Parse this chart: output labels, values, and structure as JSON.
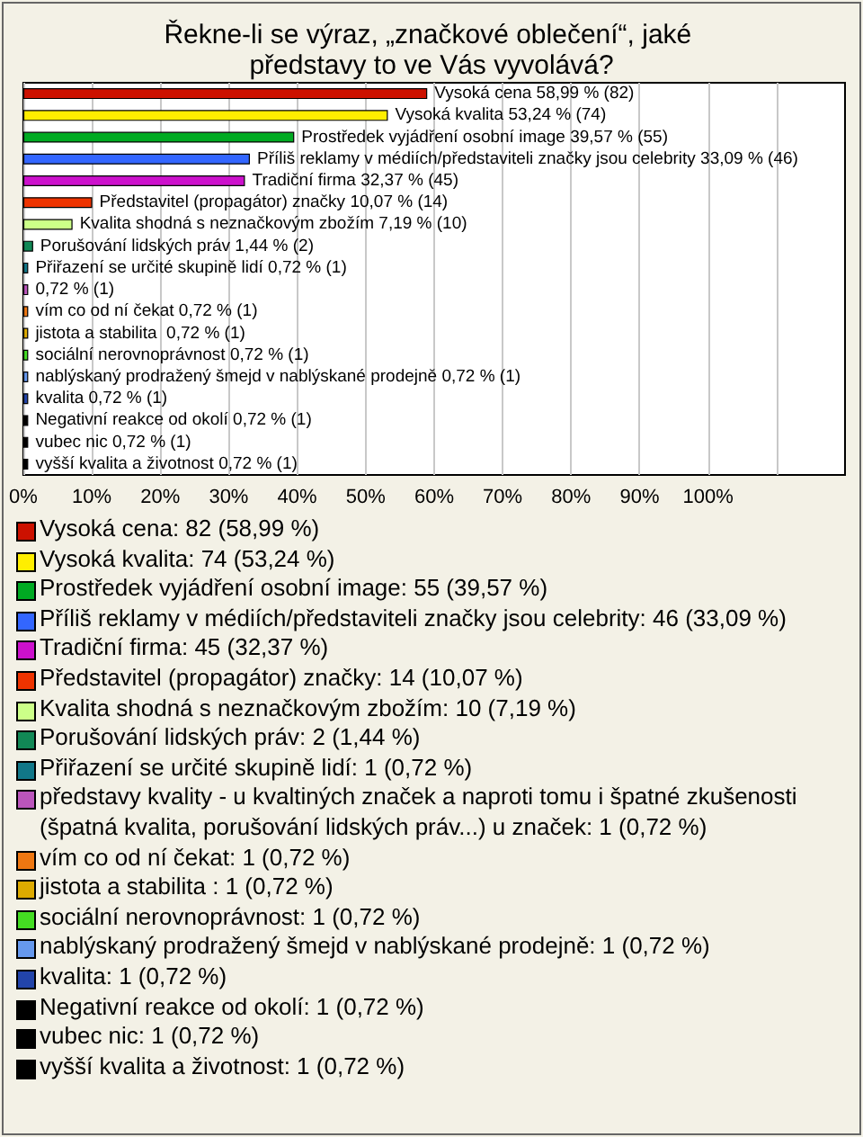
{
  "chart_data": {
    "type": "bar",
    "orientation": "horizontal",
    "title": "Řekne-li se výraz, „značkové oblečení“, jaké představy to ve Vás vyvolává?",
    "categories": [
      "Vysoká cena",
      "Vysoká kvalita",
      "Prostředek vyjádření osobní image",
      "Příliš reklamy v médiích/představiteli značky jsou celebrity",
      "Tradiční firma",
      "Představitel (propagátor) značky",
      "Kvalita shodná s neznačkovým zbožím",
      "Porušování lidských práv",
      "Přiřazení se určité skupině lidí",
      null,
      "vím co od ní čekat",
      "jistota a stabilita ",
      "sociální nerovnoprávnost",
      "nablýskaný prodražený šmejd v nablýskané prodejně",
      "kvalita",
      "Negativní reakce od okolí",
      "vubec nic",
      "vyšší kvalita a životnost"
    ],
    "values": [
      58.99,
      53.24,
      39.57,
      33.09,
      32.37,
      10.07,
      7.19,
      1.44,
      0.72,
      0.72,
      0.72,
      0.72,
      0.72,
      0.72,
      0.72,
      0.72,
      0.72,
      0.72
    ],
    "value_labels": [
      "58,99 % (82)",
      "53,24 % (74)",
      "39,57 % (55)",
      "33,09 % (46)",
      "32,37 % (45)",
      "10,07 % (14)",
      "7,19 % (10)",
      "1,44 % (2)",
      "0,72 % (1)",
      "0,72 % (1)",
      "0,72 % (1)",
      "0,72 % (1)",
      "0,72 % (1)",
      "0,72 % (1)",
      "0,72 % (1)",
      "0,72 % (1)",
      "0,72 % (1)",
      "0,72 % (1)"
    ],
    "colors": [
      "#cc1100",
      "#ffee00",
      "#00aa22",
      "#3366ff",
      "#cc11cc",
      "#ee3300",
      "#ccff88",
      "#118855",
      "#117788",
      "#bb55bb",
      "#ee7711",
      "#ddaa00",
      "#44dd22",
      "#6699ee",
      "#2244aa",
      "#000000",
      "#000000",
      "#000000"
    ],
    "xlim": [
      0,
      120
    ],
    "xticks": [
      {
        "value": 0,
        "label": "0%"
      },
      {
        "value": 10,
        "label": "10%"
      },
      {
        "value": 20,
        "label": "20%"
      },
      {
        "value": 30,
        "label": "30%"
      },
      {
        "value": 40,
        "label": "40%"
      },
      {
        "value": 50,
        "label": "50%"
      },
      {
        "value": 60,
        "label": "60%"
      },
      {
        "value": 70,
        "label": "70%"
      },
      {
        "value": 80,
        "label": "80%"
      },
      {
        "value": 90,
        "label": "90%"
      },
      {
        "value": 100,
        "label": "100%"
      },
      {
        "value": 110,
        "label": null
      }
    ],
    "grid": "x",
    "annotations": [
      "Vysoká cena: 82 (58,99 %)",
      "Vysoká kvalita: 74 (53,24 %)",
      "Prostředek vyjádření osobní image: 55 (39,57 %)",
      "Příliš reklamy v médiích/představiteli značky jsou celebrity: 46 (33,09 %)",
      "Tradiční firma: 45 (32,37 %)",
      "Představitel (propagátor) značky: 14 (10,07 %)",
      "Kvalita shodná s neznačkovým zbožím: 10 (7,19 %)",
      "Porušování lidských práv: 2 (1,44 %)",
      "Přiřazení se určité skupině lidí: 1 (0,72 %)",
      "představy kvality - u kvaltiných značek a naproti tomu i špatné zkušenosti (špatná kvalita, porušování lidských práv...) u značek: 1 (0,72 %)",
      "vím co od ní čekat: 1 (0,72 %)",
      "jistota a stabilita : 1 (0,72 %)",
      "sociální nerovnoprávnost: 1 (0,72 %)",
      "nablýskaný prodražený šmejd v nablýskané prodejně: 1 (0,72 %)",
      "kvalita: 1 (0,72 %)",
      "Negativní reakce od okolí: 1 (0,72 %)",
      "vubec nic: 1 (0,72 %)",
      "vyšší kvalita a životnost: 1 (0,72 %)"
    ]
  }
}
